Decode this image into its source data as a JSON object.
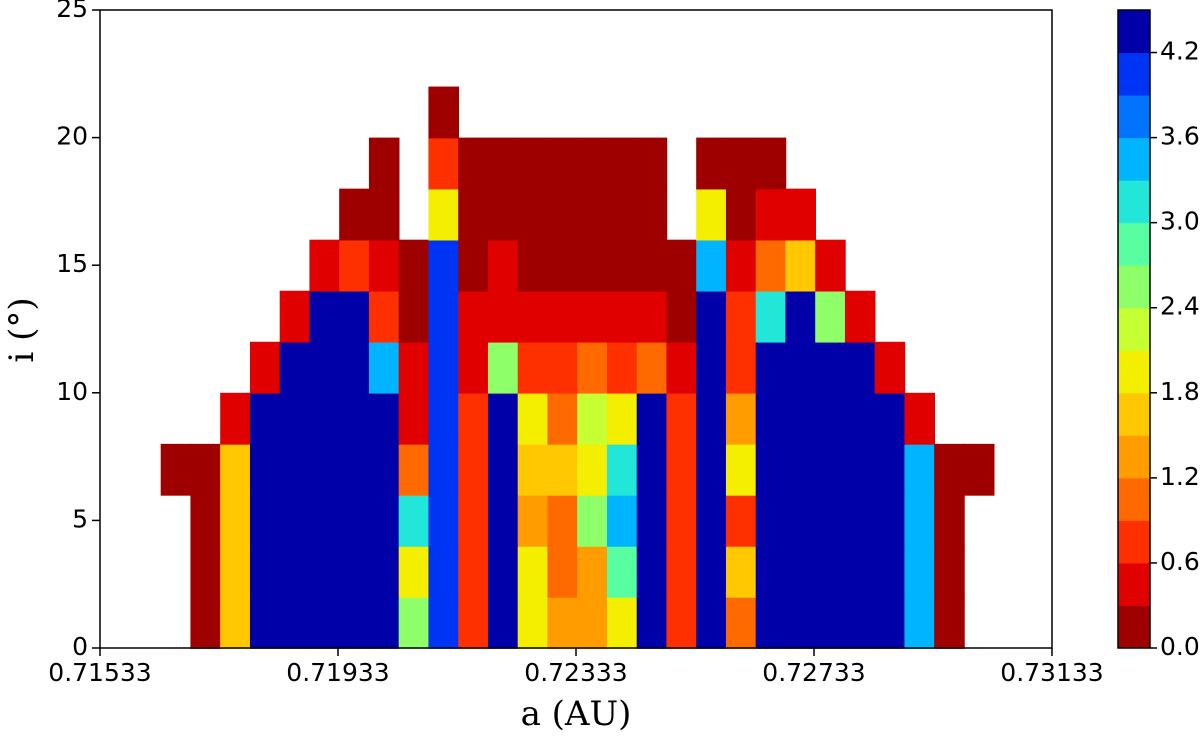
{
  "chart_data": {
    "type": "contour",
    "xlabel": "a (AU)",
    "ylabel": "i (°)",
    "x": [
      0.7166,
      0.7171,
      0.7176,
      0.7181,
      0.7186,
      0.7191,
      0.7196,
      0.7201,
      0.7206,
      0.7211,
      0.7216,
      0.7221,
      0.7226,
      0.7231,
      0.7236,
      0.7241,
      0.7246,
      0.7251,
      0.7256,
      0.7261,
      0.7266,
      0.7271,
      0.7276,
      0.7281,
      0.7286,
      0.7291,
      0.7296,
      0.7301
    ],
    "y": [
      1,
      3,
      5,
      7,
      9,
      11,
      13,
      15,
      17,
      19,
      21
    ],
    "z": [
      [
        null,
        0.2,
        1.5,
        4.5,
        4.5,
        4.5,
        4.5,
        4.5,
        2.5,
        4.0,
        0.8,
        4.5,
        2.0,
        1.2,
        1.4,
        1.8,
        4.5,
        0.6,
        4.5,
        1.0,
        4.5,
        4.5,
        4.5,
        4.5,
        4.5,
        3.5,
        0.2,
        null
      ],
      [
        null,
        0.2,
        1.5,
        4.5,
        4.5,
        4.5,
        4.5,
        4.5,
        2.0,
        4.0,
        0.8,
        4.5,
        1.8,
        1.0,
        1.3,
        2.8,
        4.5,
        0.6,
        4.5,
        1.5,
        4.5,
        4.5,
        4.5,
        4.5,
        4.5,
        3.5,
        0.2,
        null
      ],
      [
        null,
        0.1,
        1.5,
        4.5,
        4.5,
        4.5,
        4.5,
        4.5,
        3.0,
        4.0,
        0.8,
        4.5,
        1.2,
        1.1,
        2.5,
        3.5,
        4.5,
        0.6,
        4.5,
        0.8,
        4.5,
        4.5,
        4.5,
        4.5,
        4.5,
        3.5,
        0.1,
        null
      ],
      [
        0.1,
        0.1,
        1.5,
        4.5,
        4.5,
        4.5,
        4.5,
        4.5,
        1.0,
        4.0,
        0.8,
        4.5,
        1.5,
        1.6,
        1.8,
        3.0,
        4.5,
        0.6,
        4.5,
        2.0,
        4.5,
        4.5,
        4.5,
        4.5,
        4.5,
        3.5,
        0.1,
        0.1
      ],
      [
        null,
        null,
        0.3,
        4.5,
        4.5,
        4.5,
        4.5,
        4.5,
        0.5,
        4.0,
        0.8,
        4.5,
        2.0,
        1.0,
        2.2,
        2.0,
        4.5,
        0.6,
        4.5,
        1.2,
        4.5,
        4.5,
        4.5,
        4.5,
        4.5,
        0.3,
        null,
        null
      ],
      [
        null,
        null,
        null,
        0.5,
        4.5,
        4.5,
        4.5,
        3.5,
        0.5,
        4.0,
        0.5,
        2.5,
        0.6,
        0.7,
        1.0,
        0.8,
        1.0,
        0.3,
        4.5,
        0.8,
        4.5,
        4.5,
        4.5,
        4.5,
        0.3,
        null,
        null,
        null
      ],
      [
        null,
        null,
        null,
        null,
        0.3,
        4.5,
        4.5,
        0.8,
        0.2,
        4.0,
        0.3,
        0.5,
        0.5,
        0.4,
        0.5,
        0.4,
        0.4,
        0.1,
        4.5,
        0.6,
        3.0,
        4.5,
        2.5,
        0.5,
        null,
        null,
        null,
        null
      ],
      [
        null,
        null,
        null,
        null,
        null,
        0.4,
        0.8,
        0.4,
        0.1,
        4.0,
        0.2,
        0.3,
        0.2,
        0.2,
        0.2,
        0.1,
        0.1,
        0.1,
        3.5,
        0.4,
        1.0,
        1.5,
        0.3,
        null,
        null,
        null,
        null,
        null
      ],
      [
        null,
        null,
        null,
        null,
        null,
        null,
        0.2,
        0.2,
        null,
        2.0,
        0.1,
        0.1,
        0.1,
        0.1,
        0.1,
        0.1,
        0.1,
        null,
        2.0,
        0.2,
        0.3,
        0.3,
        null,
        null,
        null,
        null,
        null,
        null
      ],
      [
        null,
        null,
        null,
        null,
        null,
        null,
        null,
        0.1,
        null,
        0.8,
        0.1,
        0.1,
        0.1,
        0.1,
        0.1,
        0.1,
        0.1,
        null,
        0.1,
        0.1,
        0.1,
        null,
        null,
        null,
        null,
        null,
        null,
        null
      ],
      [
        null,
        null,
        null,
        null,
        null,
        null,
        null,
        null,
        null,
        0.2,
        null,
        null,
        null,
        null,
        null,
        null,
        null,
        null,
        null,
        null,
        null,
        null,
        null,
        null,
        null,
        null,
        null,
        null
      ]
    ],
    "xlim": [
      0.71533,
      0.73133
    ],
    "xticks": [
      0.71533,
      0.71933,
      0.72333,
      0.72733,
      0.73133
    ],
    "ylim": [
      0,
      25
    ],
    "yticks": [
      0,
      5,
      10,
      15,
      20,
      25
    ],
    "levels": [
      0,
      0.3,
      0.6,
      0.9,
      1.2,
      1.5,
      1.8,
      2.1,
      2.4,
      2.7,
      3.0,
      3.3,
      3.6,
      3.9,
      4.2,
      4.5
    ],
    "colors": [
      "#9e0000",
      "#e00000",
      "#ff3000",
      "#ff6a00",
      "#ff9c00",
      "#ffc800",
      "#f4ee00",
      "#c6ff32",
      "#8eff69",
      "#58ffa0",
      "#22e6d8",
      "#00b4ff",
      "#0074ff",
      "#0034f4",
      "#0000a8"
    ],
    "clim": [
      0,
      4.5
    ],
    "cticks": [
      {
        "value": 0,
        "label": "0.0"
      },
      {
        "value": 0.6,
        "label": "0.6"
      },
      {
        "value": 1.2,
        "label": "1.2"
      },
      {
        "value": 1.8,
        "label": "1.8"
      },
      {
        "value": 2.4,
        "label": "2.4"
      },
      {
        "value": 3.0,
        "label": "3.0"
      },
      {
        "value": 3.6,
        "label": "3.6"
      },
      {
        "value": 4.2,
        "label": "4.2"
      }
    ]
  }
}
